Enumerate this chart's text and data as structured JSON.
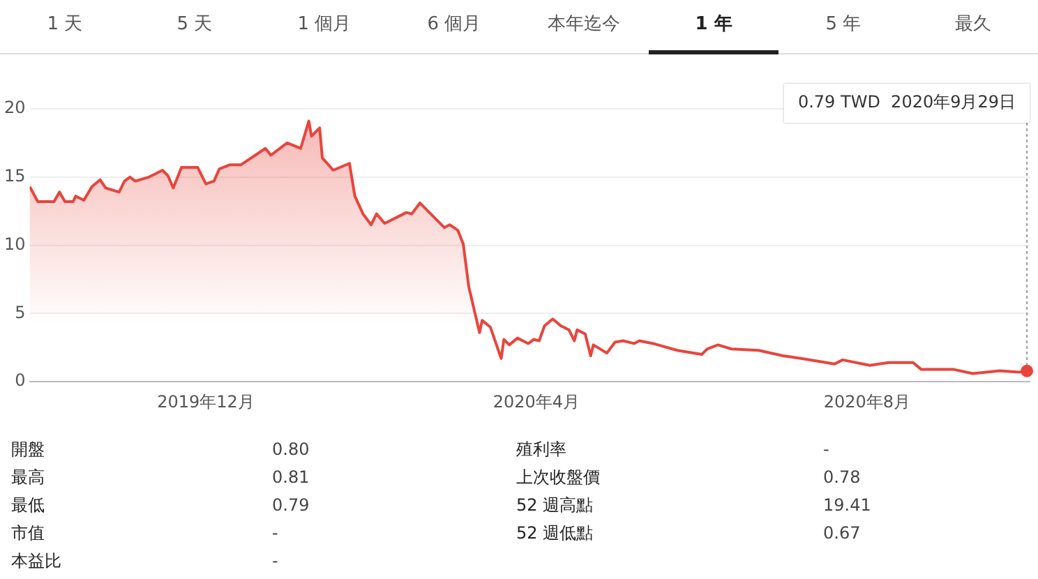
{
  "chart_data": [
    {
      "type": "other",
      "categories": [
        "1 天",
        "5 天",
        "1 個月",
        "6 個月",
        "本年迄今",
        "1 年",
        "5 年",
        "最久"
      ]
    },
    {
      "type": "area",
      "color": "#e8453c",
      "grid": "y",
      "marker": "none",
      "legend": false,
      "x": [
        "2019-09-27",
        "2019-09-30",
        "2019-10-06",
        "2019-10-08",
        "2019-10-10",
        "2019-10-13",
        "2019-10-14",
        "2019-10-17",
        "2019-10-20",
        "2019-10-23",
        "2019-10-25",
        "2019-10-30",
        "2019-11-01",
        "2019-11-03",
        "2019-11-05",
        "2019-11-10",
        "2019-11-13",
        "2019-11-15",
        "2019-11-17",
        "2019-11-19",
        "2019-11-22",
        "2019-11-28",
        "2019-12-01",
        "2019-12-04",
        "2019-12-06",
        "2019-12-10",
        "2019-12-14",
        "2019-12-23",
        "2019-12-25",
        "2019-12-31",
        "2020-01-05",
        "2020-01-08",
        "2020-01-09",
        "2020-01-12",
        "2020-01-13",
        "2020-01-17",
        "2020-01-23",
        "2020-01-25",
        "2020-01-28",
        "2020-01-31",
        "2020-02-02",
        "2020-02-05",
        "2020-02-13",
        "2020-02-15",
        "2020-02-18",
        "2020-02-22",
        "2020-02-27",
        "2020-02-29",
        "2020-03-03",
        "2020-03-05",
        "2020-03-07",
        "2020-03-11",
        "2020-03-12",
        "2020-03-15",
        "2020-03-19",
        "2020-03-20",
        "2020-03-22",
        "2020-03-25",
        "2020-03-29",
        "2020-03-31",
        "2020-04-02",
        "2020-04-04",
        "2020-04-07",
        "2020-04-10",
        "2020-04-13",
        "2020-04-15",
        "2020-04-16",
        "2020-04-19",
        "2020-04-21",
        "2020-04-22",
        "2020-04-27",
        "2020-04-30",
        "2020-05-03",
        "2020-05-07",
        "2020-05-09",
        "2020-05-14",
        "2020-05-23",
        "2020-06-01",
        "2020-06-03",
        "2020-06-07",
        "2020-06-12",
        "2020-06-22",
        "2020-07-01",
        "2020-07-08",
        "2020-07-20",
        "2020-07-23",
        "2020-08-02",
        "2020-08-09",
        "2020-08-18",
        "2020-08-21",
        "2020-09-02",
        "2020-09-09",
        "2020-09-19",
        "2020-09-26",
        "2020-09-29"
      ],
      "values": [
        14.3,
        13.2,
        13.2,
        13.9,
        13.2,
        13.2,
        13.6,
        13.3,
        14.3,
        14.8,
        14.2,
        13.9,
        14.7,
        15.0,
        14.7,
        15.0,
        15.3,
        15.5,
        15.1,
        14.2,
        15.7,
        15.7,
        14.5,
        14.7,
        15.6,
        15.9,
        15.9,
        17.1,
        16.6,
        17.5,
        17.1,
        19.1,
        18.0,
        18.6,
        16.4,
        15.5,
        16.0,
        13.6,
        12.3,
        11.5,
        12.3,
        11.6,
        12.4,
        12.3,
        13.1,
        12.3,
        11.3,
        11.5,
        11.1,
        10.1,
        7.0,
        3.6,
        4.5,
        4.0,
        1.7,
        3.1,
        2.7,
        3.2,
        2.8,
        3.1,
        3.0,
        4.1,
        4.6,
        4.1,
        3.8,
        3.0,
        3.8,
        3.5,
        1.9,
        2.7,
        2.1,
        2.9,
        3.0,
        2.8,
        3.0,
        2.8,
        2.3,
        2.0,
        2.4,
        2.7,
        2.4,
        2.3,
        1.9,
        1.7,
        1.3,
        1.6,
        1.2,
        1.4,
        1.4,
        0.9,
        0.9,
        0.6,
        0.8,
        0.7,
        0.79
      ],
      "xlim": [
        "2019-09-27",
        "2020-09-30"
      ],
      "xticks": [
        {
          "value": "2019-12-01",
          "label": "2019年12月"
        },
        {
          "value": "2020-04-01",
          "label": "2020年4月"
        },
        {
          "value": "2020-08-01",
          "label": "2020年8月"
        }
      ],
      "ylim": [
        0,
        20
      ],
      "yticks": [
        0,
        5,
        10,
        15,
        20
      ],
      "annotations": [
        "0.79 TWD  2020年9月29日"
      ]
    },
    {
      "type": "other",
      "categories": [
        "開盤",
        "最高",
        "最低",
        "市值",
        "本益比",
        "殖利率",
        "上次收盤價",
        "52 週高點",
        "52 週低點"
      ],
      "value_labels": [
        "0.80",
        "0.81",
        "0.79",
        "-",
        "-",
        "-",
        "0.78",
        "19.41",
        "0.67"
      ]
    }
  ]
}
